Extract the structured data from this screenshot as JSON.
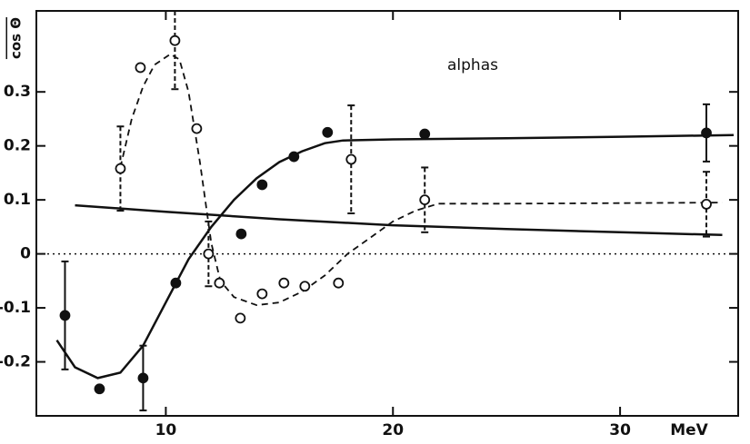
{
  "chart_data": {
    "type": "scatter",
    "y_label": "cos Θ",
    "x_label": "MeV",
    "annotation": "alphas",
    "xlim": [
      4.3,
      35.2
    ],
    "ylim": [
      -0.3,
      0.45
    ],
    "xticks": [
      10,
      20,
      30
    ],
    "yticks": [
      -0.2,
      -0.1,
      0,
      0.1,
      0.2,
      0.3
    ],
    "zero_line": true,
    "series": [
      {
        "marker": "filled",
        "color": "#111111",
        "x": [
          5.56,
          7.08,
          9.0,
          10.44,
          13.32,
          14.24,
          15.64,
          17.12,
          21.4,
          33.8
        ],
        "values": [
          -0.114,
          -0.25,
          -0.23,
          -0.054,
          0.037,
          0.128,
          0.18,
          0.225,
          0.222,
          0.224
        ],
        "errors": [
          0.1,
          null,
          0.06,
          null,
          null,
          null,
          null,
          null,
          null,
          0.053
        ]
      },
      {
        "marker": "open",
        "color": "#111111",
        "x": [
          8.0,
          8.88,
          10.4,
          11.36,
          11.88,
          12.36,
          13.28,
          14.24,
          15.2,
          16.12,
          17.6,
          18.16,
          21.4,
          33.8
        ],
        "values": [
          0.158,
          0.345,
          0.395,
          0.232,
          0.0,
          -0.054,
          -0.119,
          -0.074,
          -0.054,
          -0.06,
          -0.054,
          0.175,
          0.1,
          0.092
        ],
        "errors": [
          0.078,
          null,
          0.09,
          null,
          0.06,
          null,
          null,
          null,
          null,
          null,
          null,
          0.1,
          0.06,
          0.06
        ]
      }
    ],
    "curves": [
      {
        "style": "solid",
        "color": "#111111",
        "x": [
          5.2,
          6,
          7,
          8,
          9,
          10,
          11,
          12,
          13,
          14,
          15,
          16,
          17,
          17.8,
          20,
          25,
          30,
          35
        ],
        "values": [
          -0.16,
          -0.21,
          -0.23,
          -0.22,
          -0.17,
          -0.09,
          -0.01,
          0.05,
          0.1,
          0.14,
          0.17,
          0.19,
          0.205,
          0.21,
          0.212,
          0.214,
          0.217,
          0.22
        ]
      },
      {
        "style": "solid",
        "color": "#111111",
        "x": [
          6,
          10,
          15,
          20,
          25,
          30,
          34.5
        ],
        "values": [
          0.09,
          0.078,
          0.064,
          0.053,
          0.046,
          0.04,
          0.035
        ]
      },
      {
        "style": "dashed",
        "color": "#111111",
        "x": [
          8,
          8.5,
          9,
          9.5,
          10.2,
          10.6,
          11,
          11.5,
          12,
          12.4,
          13,
          14,
          15,
          16,
          17,
          18,
          19,
          20,
          21,
          22,
          25,
          30,
          34.5
        ],
        "values": [
          0.16,
          0.25,
          0.31,
          0.35,
          0.37,
          0.36,
          0.3,
          0.17,
          0.02,
          -0.05,
          -0.08,
          -0.095,
          -0.09,
          -0.07,
          -0.04,
          0.0,
          0.03,
          0.06,
          0.08,
          0.093,
          0.093,
          0.094,
          0.095
        ]
      }
    ]
  }
}
